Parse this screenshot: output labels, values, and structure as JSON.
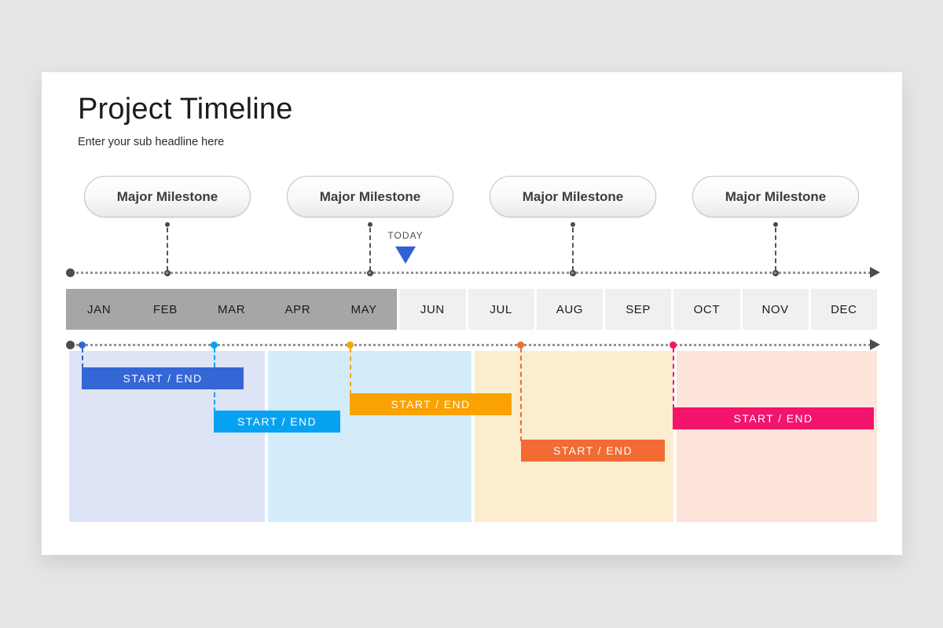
{
  "colors": {
    "page_background": "#e5e4e6",
    "card_background": "#ffffff",
    "axis_dotted": "#929292",
    "axis_dots_and_arrow": "#4c4c4c",
    "month_past_bg": "#a7a6a6",
    "month_future_bg": "#f1f0f0",
    "today_marker": "#2f63d4"
  },
  "header": {
    "title": "Project Timeline",
    "subtitle": "Enter your sub headline here"
  },
  "milestones": [
    {
      "label": "Major Milestone"
    },
    {
      "label": "Major Milestone"
    },
    {
      "label": "Major Milestone"
    },
    {
      "label": "Major Milestone"
    }
  ],
  "today": {
    "label": "TODAY"
  },
  "timeline": {
    "months": [
      "JAN",
      "FEB",
      "MAR",
      "APR",
      "MAY",
      "JUN",
      "JUL",
      "AUG",
      "SEP",
      "OCT",
      "NOV",
      "DEC"
    ],
    "past_months": [
      "JAN",
      "FEB",
      "MAR",
      "APR",
      "MAY"
    ],
    "future_months": [
      "JUN",
      "JUL",
      "AUG",
      "SEP",
      "OCT",
      "NOV",
      "DEC"
    ]
  },
  "gantt": {
    "tasks": [
      {
        "label": "START / END",
        "color": "#3566d6",
        "start_month": "JAN",
        "end_month": "MAR"
      },
      {
        "label": "START / END",
        "color": "#05a2f2",
        "start_month": "MAR",
        "end_month": "MAY"
      },
      {
        "label": "START / END",
        "color": "#f9a201",
        "start_month": "MAY",
        "end_month": "JUL"
      },
      {
        "label": "START / END",
        "color": "#f26b33",
        "start_month": "JUL",
        "end_month": "SEP"
      },
      {
        "label": "START / END",
        "color": "#f2146d",
        "start_month": "OCT",
        "end_month": "DEC"
      }
    ],
    "regions": [
      {
        "color": "#dce4f5",
        "months": "JAN-MAR"
      },
      {
        "color": "#d4ecfa",
        "months": "APR-JUN"
      },
      {
        "color": "#fcedcf",
        "months": "JUL-SEP"
      },
      {
        "color": "#fce4da",
        "months": "OCT-DEC"
      }
    ]
  }
}
